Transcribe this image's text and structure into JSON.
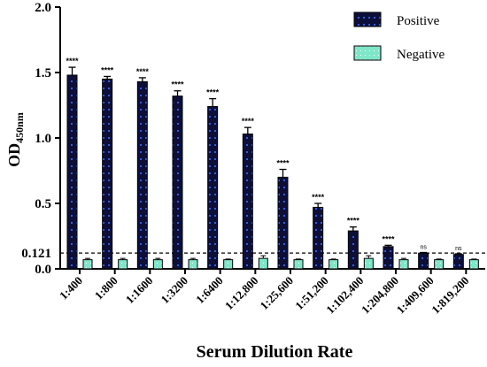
{
  "chart_data": {
    "type": "bar",
    "xlabel": "Serum Dilution Rate",
    "ylabel_main": "OD",
    "ylabel_sub": "450nm",
    "ylim": [
      0,
      2.0
    ],
    "yticks": [
      "0.0",
      "0.5",
      "1.0",
      "1.5",
      "2.0"
    ],
    "cutoff": {
      "value": 0.121,
      "label": "0.121"
    },
    "categories": [
      "1:400",
      "1:800",
      "1:1600",
      "1:3200",
      "1:6400",
      "1:12,800",
      "1:25,600",
      "1:51,200",
      "1:102,400",
      "1:204,800",
      "1:409,600",
      "1:819,200"
    ],
    "series": [
      {
        "name": "Positive",
        "color": "#0d0f3a",
        "dot_color": "#2f5fd6",
        "values": [
          1.48,
          1.45,
          1.43,
          1.32,
          1.24,
          1.03,
          0.7,
          0.47,
          0.29,
          0.17,
          0.12,
          0.11
        ],
        "errors": [
          0.06,
          0.02,
          0.03,
          0.04,
          0.06,
          0.05,
          0.06,
          0.03,
          0.03,
          0.01,
          0.005,
          0.005
        ]
      },
      {
        "name": "Negative",
        "color": "#7fe6c8",
        "dot_color": "#ffffff",
        "values": [
          0.07,
          0.07,
          0.07,
          0.07,
          0.07,
          0.08,
          0.07,
          0.07,
          0.08,
          0.07,
          0.07,
          0.07
        ],
        "errors": [
          0.01,
          0.01,
          0.01,
          0.01,
          0.005,
          0.02,
          0.005,
          0.005,
          0.02,
          0.01,
          0.005,
          0.005
        ]
      }
    ],
    "significance": [
      "****",
      "****",
      "****",
      "****",
      "****",
      "****",
      "****",
      "****",
      "****",
      "****",
      "ns",
      "ns"
    ],
    "legend_position": "top-right"
  }
}
